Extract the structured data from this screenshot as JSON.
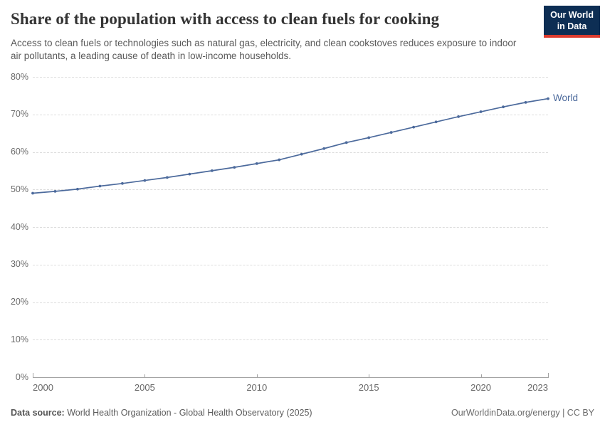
{
  "header": {
    "title": "Share of the population with access to clean fuels for cooking",
    "subtitle": "Access to clean fuels or technologies such as natural gas, electricity, and clean cookstoves reduces exposure to indoor air pollutants, a leading cause of death in low-income households.",
    "logo": {
      "line1": "Our World",
      "line2": "in Data",
      "bg_color": "#0d2e54",
      "accent_color": "#dc3b2e"
    }
  },
  "chart_data": {
    "type": "line",
    "title": "Share of the population with access to clean fuels for cooking",
    "xlabel": "",
    "ylabel": "",
    "x": [
      2000,
      2001,
      2002,
      2003,
      2004,
      2005,
      2006,
      2007,
      2008,
      2009,
      2010,
      2011,
      2012,
      2013,
      2014,
      2015,
      2016,
      2017,
      2018,
      2019,
      2020,
      2021,
      2022,
      2023
    ],
    "series": [
      {
        "name": "World",
        "color": "#4c6a9c",
        "values": [
          49.0,
          49.5,
          50.1,
          50.9,
          51.6,
          52.4,
          53.2,
          54.1,
          55.0,
          55.9,
          56.9,
          57.9,
          59.4,
          60.9,
          62.5,
          63.8,
          65.2,
          66.6,
          68.0,
          69.4,
          70.7,
          72.0,
          73.2,
          74.2
        ]
      }
    ],
    "ylim": [
      0,
      80
    ],
    "xlim": [
      2000,
      2023
    ],
    "y_ticks": [
      "0%",
      "10%",
      "20%",
      "30%",
      "40%",
      "50%",
      "60%",
      "70%",
      "80%"
    ],
    "x_ticks": [
      2000,
      2005,
      2010,
      2015,
      2020,
      2023
    ],
    "grid": "horizontal-dashed",
    "legend_position": "end-of-line",
    "markers": true
  },
  "footer": {
    "data_source_label": "Data source:",
    "data_source_value": "World Health Organization - Global Health Observatory (2025)",
    "credit": "OurWorldinData.org/energy | CC BY"
  }
}
